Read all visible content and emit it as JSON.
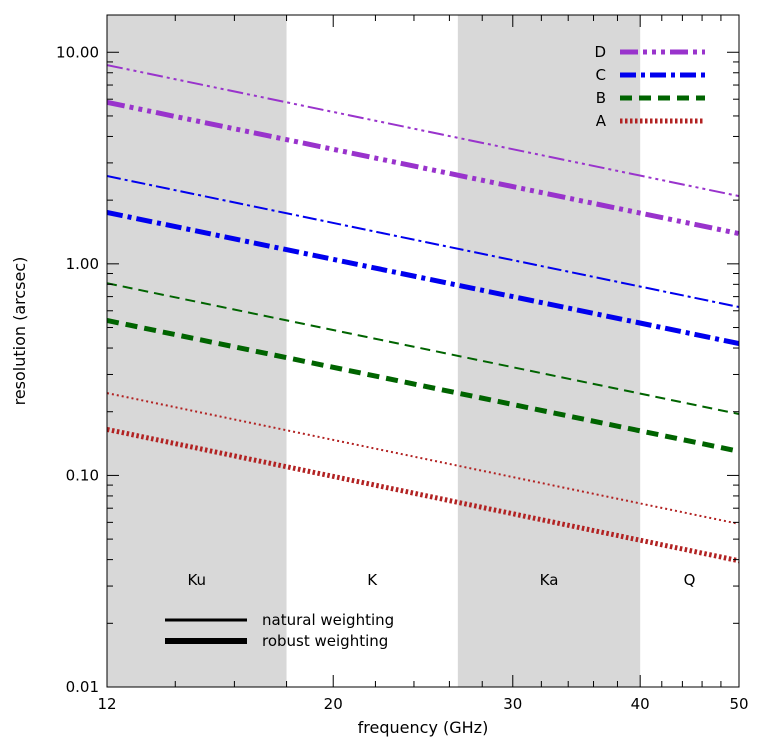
{
  "chart_data": {
    "type": "line",
    "xlabel": "frequency (GHz)",
    "ylabel": "resolution (arcsec)",
    "xscale": "log",
    "yscale": "log",
    "xlim": [
      12,
      50
    ],
    "ylim": [
      0.01,
      15
    ],
    "x_ticks": [
      12,
      20,
      30,
      40,
      50
    ],
    "x_tick_labels": [
      "12",
      "20",
      "30",
      "40",
      "50"
    ],
    "y_ticks": [
      0.01,
      0.1,
      1,
      10
    ],
    "y_tick_labels": [
      "0.01",
      "0.10",
      "1.00",
      "10.00"
    ],
    "grid": false,
    "bands": [
      {
        "label": "Ku",
        "range": [
          12,
          18
        ],
        "shaded": true,
        "color": "#d8d8d8"
      },
      {
        "label": "K",
        "range": [
          18,
          26.5
        ],
        "shaded": false
      },
      {
        "label": "Ka",
        "range": [
          26.5,
          40
        ],
        "shaded": true,
        "color": "#d8d8d8"
      },
      {
        "label": "Q",
        "range": [
          40,
          50
        ],
        "shaded": false
      }
    ],
    "legend_position": "top-right",
    "weighting_legend": {
      "position": "bottom-left",
      "items": [
        {
          "label": "natural weighting",
          "style": "thin"
        },
        {
          "label": "robust weighting",
          "style": "thick"
        }
      ]
    },
    "series": [
      {
        "name": "D",
        "color": "#9933cc",
        "dash": "dash-dot-dot-dot",
        "x": [
          12,
          50
        ],
        "natural": [
          8.7,
          2.09
        ],
        "robust": [
          5.8,
          1.39
        ]
      },
      {
        "name": "C",
        "color": "#0000ee",
        "dash": "dash-dot",
        "x": [
          12,
          50
        ],
        "natural": [
          2.6,
          0.625
        ],
        "robust": [
          1.75,
          0.42
        ]
      },
      {
        "name": "B",
        "color": "#006400",
        "dash": "dash",
        "x": [
          12,
          50
        ],
        "natural": [
          0.81,
          0.195
        ],
        "robust": [
          0.54,
          0.13
        ]
      },
      {
        "name": "A",
        "color": "#b22222",
        "dash": "dot",
        "x": [
          12,
          50
        ],
        "natural": [
          0.245,
          0.059
        ],
        "robust": [
          0.165,
          0.0395
        ]
      }
    ]
  }
}
